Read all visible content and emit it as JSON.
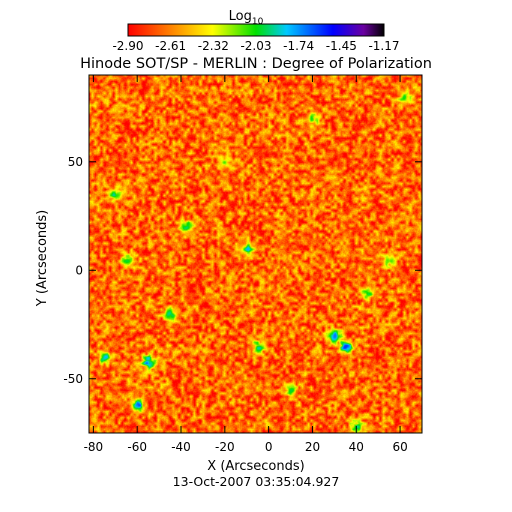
{
  "colorbar": {
    "label_main": "Log",
    "label_sub": "10",
    "ticks": [
      "-2.90",
      "-2.61",
      "-2.32",
      "-2.03",
      "-1.74",
      "-1.45",
      "-1.17"
    ],
    "range": [
      -2.9,
      -1.17
    ],
    "colors": [
      "#ff0000",
      "#ff8c00",
      "#ffff00",
      "#00e000",
      "#00c8ff",
      "#0000ff",
      "#000000"
    ]
  },
  "chart_data": {
    "type": "heatmap",
    "title": "Hinode SOT/SP - MERLIN : Degree of Polarization",
    "xlabel": "X (Arcseconds)",
    "ylabel": "Y (Arcseconds)",
    "xlim": [
      -82,
      70
    ],
    "ylim": [
      -75,
      90
    ],
    "xticks": [
      -80,
      -60,
      -40,
      -20,
      0,
      20,
      40,
      60
    ],
    "yticks": [
      -50,
      0,
      50
    ],
    "value_range": [
      -2.9,
      -1.17
    ],
    "grid": false,
    "background_level": -2.75,
    "features": [
      {
        "x": -60,
        "y": -62,
        "value": -1.6
      },
      {
        "x": -55,
        "y": -42,
        "value": -1.6
      },
      {
        "x": -38,
        "y": 20,
        "value": -1.7
      },
      {
        "x": -10,
        "y": 10,
        "value": -1.8
      },
      {
        "x": 20,
        "y": 70,
        "value": -2.0
      },
      {
        "x": 30,
        "y": -30,
        "value": -1.7
      },
      {
        "x": 35,
        "y": -35,
        "value": -1.6
      },
      {
        "x": 45,
        "y": -10,
        "value": -1.9
      },
      {
        "x": 40,
        "y": -72,
        "value": -1.9
      },
      {
        "x": -75,
        "y": -40,
        "value": -1.8
      },
      {
        "x": -70,
        "y": 35,
        "value": -1.9
      },
      {
        "x": 55,
        "y": 5,
        "value": -2.0
      },
      {
        "x": -20,
        "y": 50,
        "value": -2.1
      },
      {
        "x": 10,
        "y": -55,
        "value": -2.0
      },
      {
        "x": -45,
        "y": -20,
        "value": -1.9
      },
      {
        "x": 62,
        "y": 80,
        "value": -2.0
      },
      {
        "x": -5,
        "y": -35,
        "value": -1.9
      },
      {
        "x": -65,
        "y": 5,
        "value": -2.0
      }
    ]
  },
  "timestamp": "13-Oct-2007 03:35:04.927"
}
